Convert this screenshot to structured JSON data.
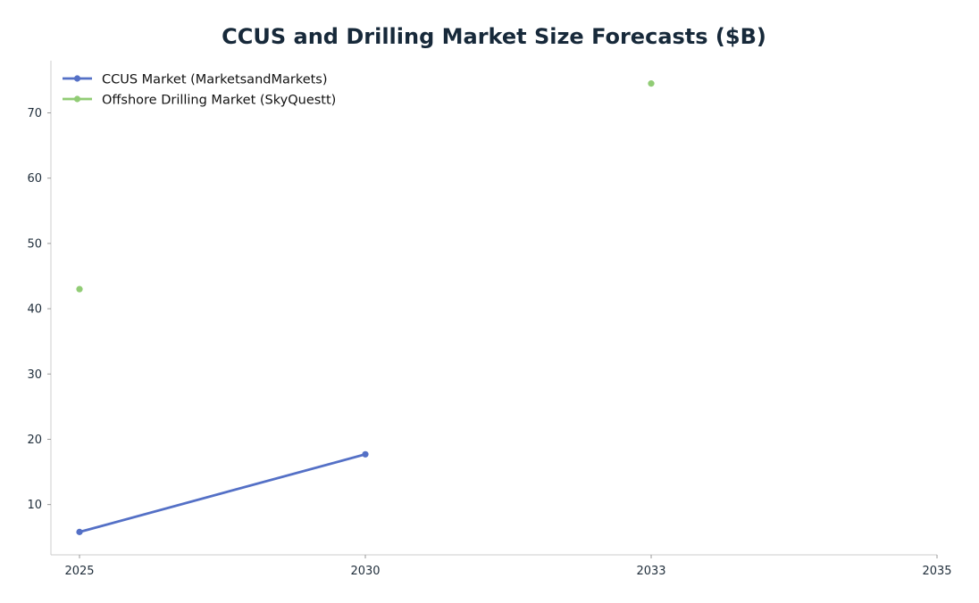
{
  "chart_data": {
    "type": "line",
    "title": "CCUS and Drilling Market Size Forecasts ($B)",
    "xlabel": "",
    "ylabel": "",
    "x_ticks": [
      "2025",
      "2030",
      "2033",
      "2035"
    ],
    "y_ticks": [
      10,
      20,
      30,
      40,
      50,
      60,
      70
    ],
    "ylim": [
      2.3,
      78
    ],
    "grid": false,
    "legend_position": "top-left",
    "series": [
      {
        "name": "CCUS Market (MarketsandMarkets)",
        "color": "#5470c6",
        "values": [
          5.8,
          17.7,
          null,
          null
        ]
      },
      {
        "name": "Offshore Drilling Market (SkyQuestt)",
        "color": "#91cc75",
        "values": [
          43.0,
          null,
          74.5,
          null
        ]
      }
    ]
  }
}
